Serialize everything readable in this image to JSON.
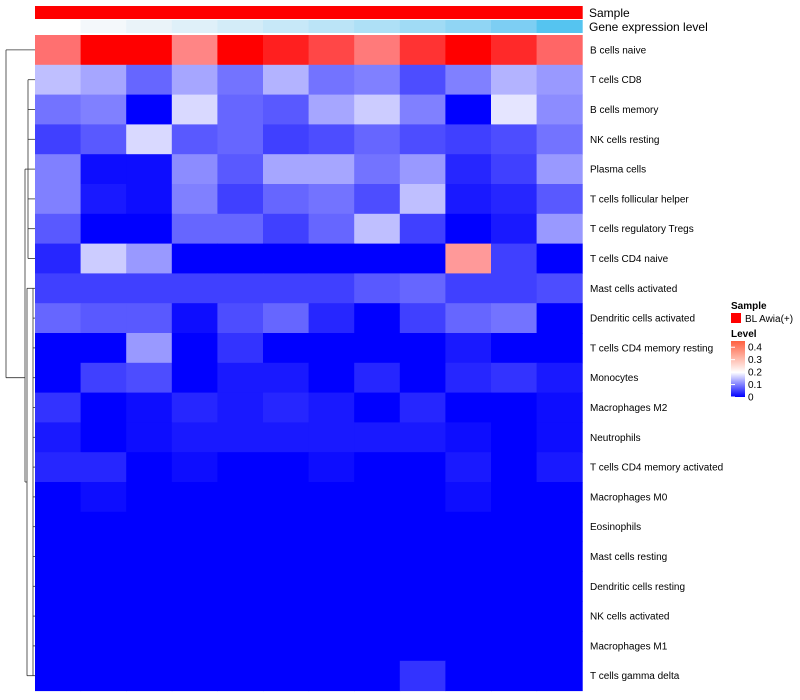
{
  "chart_data": {
    "type": "heatmap",
    "annotation_rows": [
      {
        "label": "Sample",
        "colors": [
          "#ff0000",
          "#ff0000",
          "#ff0000",
          "#ff0000",
          "#ff0000",
          "#ff0000",
          "#ff0000",
          "#ff0000",
          "#ff0000",
          "#ff0000",
          "#ff0000",
          "#ff0000"
        ]
      },
      {
        "label": "Gene expression level",
        "colors": [
          "#ffffff",
          "#f4f8fb",
          "#eaf3f9",
          "#dff0f9",
          "#d3ecf8",
          "#c7e8f8",
          "#bbe4f7",
          "#aee0f6",
          "#a0dbf5",
          "#90d5f4",
          "#7dcef3",
          "#55c4f0"
        ]
      }
    ],
    "rows": [
      "B cells naive",
      "T cells CD8",
      "B cells memory",
      "NK cells resting",
      "Plasma cells",
      "T cells follicular helper",
      "T cells regulatory  Tregs",
      "T cells CD4 naive",
      "Mast cells activated",
      "Dendritic cells activated",
      "T cells CD4 memory resting",
      "Monocytes",
      "Macrophages M2",
      "Neutrophils",
      "T cells CD4 memory activated",
      "Macrophages M0",
      "Eosinophils",
      "Mast cells resting",
      "Dendritic cells resting",
      "NK cells activated",
      "Macrophages M1",
      "T cells gamma delta"
    ],
    "values": [
      [
        0.34,
        0.45,
        0.45,
        0.32,
        0.45,
        0.42,
        0.38,
        0.33,
        0.4,
        0.45,
        0.41,
        0.35
      ],
      [
        0.15,
        0.13,
        0.08,
        0.13,
        0.09,
        0.14,
        0.09,
        0.1,
        0.06,
        0.1,
        0.14,
        0.12
      ],
      [
        0.09,
        0.1,
        0.0,
        0.17,
        0.08,
        0.07,
        0.13,
        0.16,
        0.1,
        0.0,
        0.18,
        0.11
      ],
      [
        0.05,
        0.07,
        0.17,
        0.07,
        0.08,
        0.05,
        0.06,
        0.08,
        0.06,
        0.05,
        0.06,
        0.09
      ],
      [
        0.1,
        0.01,
        0.01,
        0.11,
        0.07,
        0.13,
        0.13,
        0.09,
        0.12,
        0.03,
        0.05,
        0.12
      ],
      [
        0.1,
        0.02,
        0.01,
        0.1,
        0.05,
        0.08,
        0.09,
        0.06,
        0.15,
        0.02,
        0.03,
        0.07
      ],
      [
        0.07,
        0.0,
        0.0,
        0.08,
        0.08,
        0.05,
        0.08,
        0.15,
        0.05,
        0.0,
        0.02,
        0.12
      ],
      [
        0.03,
        0.16,
        0.12,
        0.0,
        0.0,
        0.0,
        0.0,
        0.0,
        0.0,
        0.3,
        0.05,
        0.0
      ],
      [
        0.05,
        0.05,
        0.05,
        0.05,
        0.05,
        0.05,
        0.05,
        0.07,
        0.08,
        0.05,
        0.05,
        0.06
      ],
      [
        0.08,
        0.07,
        0.07,
        0.01,
        0.06,
        0.08,
        0.03,
        0.0,
        0.05,
        0.08,
        0.09,
        0.0
      ],
      [
        0.0,
        0.0,
        0.12,
        0.0,
        0.04,
        0.0,
        0.0,
        0.0,
        0.0,
        0.02,
        0.0,
        0.0
      ],
      [
        0.0,
        0.05,
        0.06,
        0.0,
        0.02,
        0.02,
        0.0,
        0.03,
        0.0,
        0.03,
        0.04,
        0.02
      ],
      [
        0.04,
        0.0,
        0.01,
        0.03,
        0.02,
        0.03,
        0.02,
        0.0,
        0.03,
        0.0,
        0.0,
        0.01
      ],
      [
        0.02,
        0.0,
        0.01,
        0.02,
        0.02,
        0.02,
        0.02,
        0.02,
        0.02,
        0.01,
        0.0,
        0.01
      ],
      [
        0.03,
        0.03,
        0.0,
        0.01,
        0.0,
        0.0,
        0.01,
        0.0,
        0.0,
        0.02,
        0.0,
        0.02
      ],
      [
        0.0,
        0.01,
        0.0,
        0.0,
        0.0,
        0.0,
        0.0,
        0.0,
        0.0,
        0.01,
        0.0,
        0.0
      ],
      [
        0.0,
        0.0,
        0.0,
        0.0,
        0.0,
        0.0,
        0.0,
        0.0,
        0.0,
        0.0,
        0.0,
        0.0
      ],
      [
        0.0,
        0.0,
        0.0,
        0.0,
        0.0,
        0.0,
        0.0,
        0.0,
        0.0,
        0.0,
        0.0,
        0.0
      ],
      [
        0.0,
        0.0,
        0.0,
        0.0,
        0.0,
        0.0,
        0.0,
        0.0,
        0.0,
        0.0,
        0.0,
        0.0
      ],
      [
        0.0,
        0.0,
        0.0,
        0.0,
        0.0,
        0.0,
        0.0,
        0.0,
        0.0,
        0.0,
        0.0,
        0.0
      ],
      [
        0.0,
        0.0,
        0.0,
        0.0,
        0.0,
        0.0,
        0.0,
        0.0,
        0.0,
        0.0,
        0.0,
        0.0
      ],
      [
        0.0,
        0.0,
        0.0,
        0.0,
        0.0,
        0.0,
        0.0,
        0.0,
        0.04,
        0.0,
        0.0,
        0.0
      ]
    ],
    "color_scale": {
      "low": "#0000ff",
      "mid": "#ffffff",
      "high": "#ff0000",
      "range": [
        0,
        0.45
      ],
      "mid_value": 0.2
    },
    "legend": {
      "sample_title": "Sample",
      "sample_entry": "BL Awia(+)",
      "sample_color": "#ff0000",
      "level_title": "Level",
      "level_ticks": [
        "0.4",
        "0.3",
        "0.2",
        "0.1",
        "0"
      ]
    },
    "dendrogram": true
  }
}
